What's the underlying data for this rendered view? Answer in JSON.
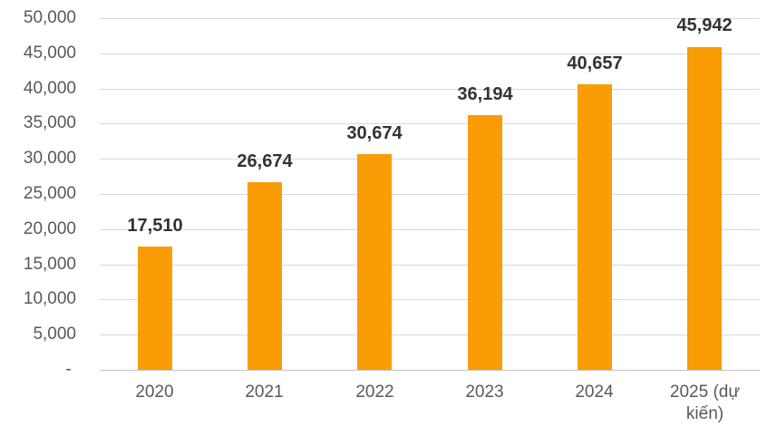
{
  "chart_data": {
    "type": "bar",
    "title": "",
    "xlabel": "",
    "ylabel": "",
    "categories": [
      "2020",
      "2021",
      "2022",
      "2023",
      "2024",
      "2025 (dự kiến)"
    ],
    "values": [
      17510,
      26674,
      30674,
      36194,
      40657,
      45942
    ],
    "value_labels": [
      "17,510",
      "26,674",
      "30,674",
      "36,194",
      "40,657",
      "45,942"
    ],
    "ylim": [
      0,
      50000
    ],
    "ytick_values": [
      50000,
      45000,
      40000,
      35000,
      30000,
      25000,
      20000,
      15000,
      10000,
      5000,
      0
    ],
    "ytick_labels": [
      "50,000",
      "45,000",
      "40,000",
      "35,000",
      "30,000",
      "25,000",
      "20,000",
      "15,000",
      "10,000",
      "5,000",
      "- "
    ],
    "grid": "horizontal",
    "legend": "none",
    "colors": {
      "bar": "#F99C06",
      "gridline": "#D9D9D9",
      "axis_line": "#C4C4C4",
      "tick_text": "#595959",
      "value_label_text": "#333333",
      "background": "#FFFFFF"
    }
  }
}
